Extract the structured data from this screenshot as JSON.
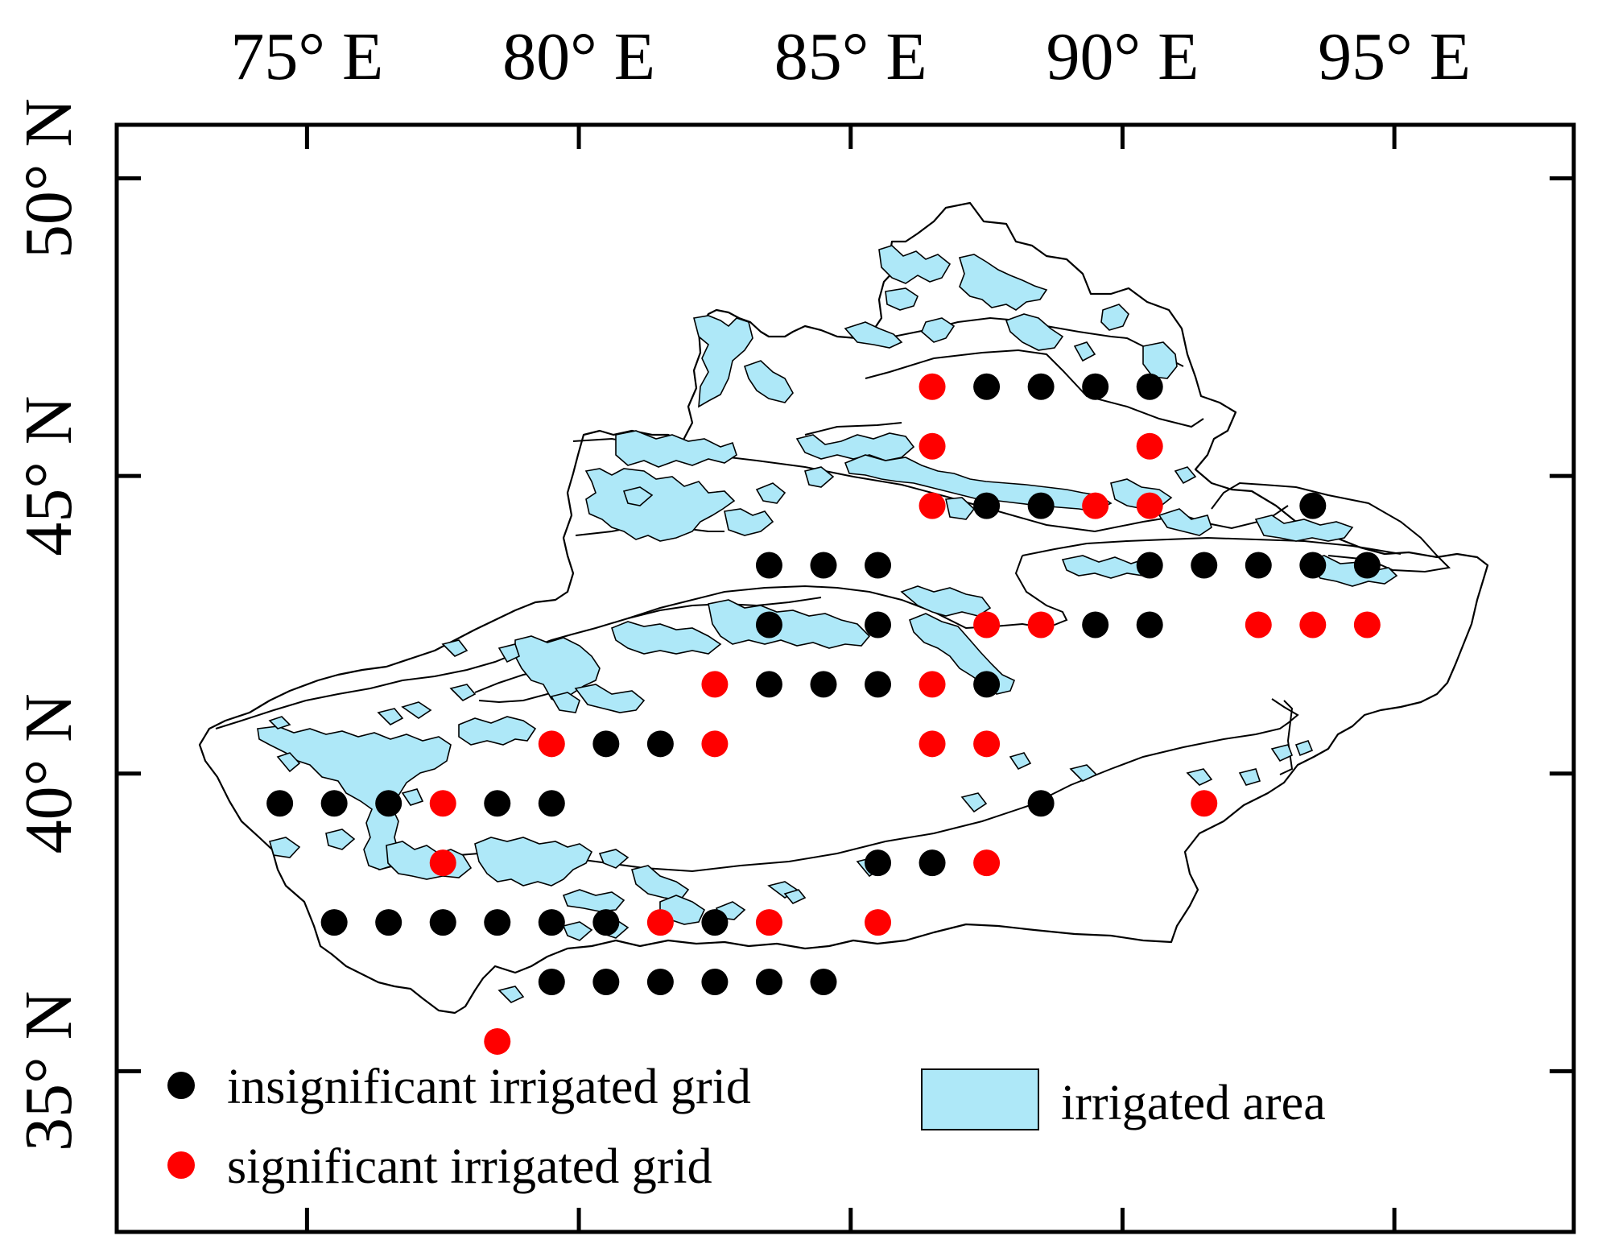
{
  "map": {
    "x_ticks": [
      {
        "lon": 75,
        "label": "75° E"
      },
      {
        "lon": 80,
        "label": "80° E"
      },
      {
        "lon": 85,
        "label": "85° E"
      },
      {
        "lon": 90,
        "label": "90° E"
      },
      {
        "lon": 95,
        "label": "95° E"
      }
    ],
    "y_ticks": [
      {
        "lat": 35,
        "label": "35° N"
      },
      {
        "lat": 40,
        "label": "40° N"
      },
      {
        "lat": 45,
        "label": "45° N"
      },
      {
        "lat": 50,
        "label": "50° N"
      }
    ],
    "lon_range": [
      71.5,
      98.3
    ],
    "lat_range": [
      32.3,
      50.9
    ],
    "colors": {
      "insignificant": "#000000",
      "significant": "#ff0000",
      "irrigated_fill": "#aee8f8",
      "outline": "#000000"
    },
    "legend": {
      "insignificant_label": "insignificant irrigated grid",
      "significant_label": "significant irrigated grid",
      "irrigated_label": "irrigated area"
    },
    "grid_points": [
      {
        "lon": 86.5,
        "lat": 46.5,
        "significance": "significant"
      },
      {
        "lon": 87.5,
        "lat": 46.5,
        "significance": "insignificant"
      },
      {
        "lon": 88.5,
        "lat": 46.5,
        "significance": "insignificant"
      },
      {
        "lon": 89.5,
        "lat": 46.5,
        "significance": "insignificant"
      },
      {
        "lon": 90.5,
        "lat": 46.5,
        "significance": "insignificant"
      },
      {
        "lon": 86.5,
        "lat": 45.5,
        "significance": "significant"
      },
      {
        "lon": 90.5,
        "lat": 45.5,
        "significance": "significant"
      },
      {
        "lon": 86.5,
        "lat": 44.5,
        "significance": "significant"
      },
      {
        "lon": 87.5,
        "lat": 44.5,
        "significance": "insignificant"
      },
      {
        "lon": 88.5,
        "lat": 44.5,
        "significance": "insignificant"
      },
      {
        "lon": 89.5,
        "lat": 44.5,
        "significance": "significant"
      },
      {
        "lon": 90.5,
        "lat": 44.5,
        "significance": "significant"
      },
      {
        "lon": 93.5,
        "lat": 44.5,
        "significance": "insignificant"
      },
      {
        "lon": 83.5,
        "lat": 43.5,
        "significance": "insignificant"
      },
      {
        "lon": 84.5,
        "lat": 43.5,
        "significance": "insignificant"
      },
      {
        "lon": 85.5,
        "lat": 43.5,
        "significance": "insignificant"
      },
      {
        "lon": 90.5,
        "lat": 43.5,
        "significance": "insignificant"
      },
      {
        "lon": 91.5,
        "lat": 43.5,
        "significance": "insignificant"
      },
      {
        "lon": 92.5,
        "lat": 43.5,
        "significance": "insignificant"
      },
      {
        "lon": 93.5,
        "lat": 43.5,
        "significance": "insignificant"
      },
      {
        "lon": 94.5,
        "lat": 43.5,
        "significance": "insignificant"
      },
      {
        "lon": 83.5,
        "lat": 42.5,
        "significance": "insignificant"
      },
      {
        "lon": 85.5,
        "lat": 42.5,
        "significance": "insignificant"
      },
      {
        "lon": 87.5,
        "lat": 42.5,
        "significance": "significant"
      },
      {
        "lon": 88.5,
        "lat": 42.5,
        "significance": "significant"
      },
      {
        "lon": 89.5,
        "lat": 42.5,
        "significance": "insignificant"
      },
      {
        "lon": 90.5,
        "lat": 42.5,
        "significance": "insignificant"
      },
      {
        "lon": 92.5,
        "lat": 42.5,
        "significance": "significant"
      },
      {
        "lon": 93.5,
        "lat": 42.5,
        "significance": "significant"
      },
      {
        "lon": 94.5,
        "lat": 42.5,
        "significance": "significant"
      },
      {
        "lon": 82.5,
        "lat": 41.5,
        "significance": "significant"
      },
      {
        "lon": 83.5,
        "lat": 41.5,
        "significance": "insignificant"
      },
      {
        "lon": 84.5,
        "lat": 41.5,
        "significance": "insignificant"
      },
      {
        "lon": 85.5,
        "lat": 41.5,
        "significance": "insignificant"
      },
      {
        "lon": 86.5,
        "lat": 41.5,
        "significance": "significant"
      },
      {
        "lon": 87.5,
        "lat": 41.5,
        "significance": "insignificant"
      },
      {
        "lon": 79.5,
        "lat": 40.5,
        "significance": "significant"
      },
      {
        "lon": 80.5,
        "lat": 40.5,
        "significance": "insignificant"
      },
      {
        "lon": 81.5,
        "lat": 40.5,
        "significance": "insignificant"
      },
      {
        "lon": 82.5,
        "lat": 40.5,
        "significance": "significant"
      },
      {
        "lon": 86.5,
        "lat": 40.5,
        "significance": "significant"
      },
      {
        "lon": 87.5,
        "lat": 40.5,
        "significance": "significant"
      },
      {
        "lon": 74.5,
        "lat": 39.5,
        "significance": "insignificant"
      },
      {
        "lon": 75.5,
        "lat": 39.5,
        "significance": "insignificant"
      },
      {
        "lon": 76.5,
        "lat": 39.5,
        "significance": "insignificant"
      },
      {
        "lon": 77.5,
        "lat": 39.5,
        "significance": "significant"
      },
      {
        "lon": 78.5,
        "lat": 39.5,
        "significance": "insignificant"
      },
      {
        "lon": 79.5,
        "lat": 39.5,
        "significance": "insignificant"
      },
      {
        "lon": 88.5,
        "lat": 39.5,
        "significance": "insignificant"
      },
      {
        "lon": 91.5,
        "lat": 39.5,
        "significance": "significant"
      },
      {
        "lon": 77.5,
        "lat": 38.5,
        "significance": "significant"
      },
      {
        "lon": 85.5,
        "lat": 38.5,
        "significance": "insignificant"
      },
      {
        "lon": 86.5,
        "lat": 38.5,
        "significance": "insignificant"
      },
      {
        "lon": 87.5,
        "lat": 38.5,
        "significance": "significant"
      },
      {
        "lon": 75.5,
        "lat": 37.5,
        "significance": "insignificant"
      },
      {
        "lon": 76.5,
        "lat": 37.5,
        "significance": "insignificant"
      },
      {
        "lon": 77.5,
        "lat": 37.5,
        "significance": "insignificant"
      },
      {
        "lon": 78.5,
        "lat": 37.5,
        "significance": "insignificant"
      },
      {
        "lon": 79.5,
        "lat": 37.5,
        "significance": "insignificant"
      },
      {
        "lon": 80.5,
        "lat": 37.5,
        "significance": "insignificant"
      },
      {
        "lon": 81.5,
        "lat": 37.5,
        "significance": "significant"
      },
      {
        "lon": 82.5,
        "lat": 37.5,
        "significance": "insignificant"
      },
      {
        "lon": 83.5,
        "lat": 37.5,
        "significance": "significant"
      },
      {
        "lon": 85.5,
        "lat": 37.5,
        "significance": "significant"
      },
      {
        "lon": 79.5,
        "lat": 36.5,
        "significance": "insignificant"
      },
      {
        "lon": 80.5,
        "lat": 36.5,
        "significance": "insignificant"
      },
      {
        "lon": 81.5,
        "lat": 36.5,
        "significance": "insignificant"
      },
      {
        "lon": 82.5,
        "lat": 36.5,
        "significance": "insignificant"
      },
      {
        "lon": 83.5,
        "lat": 36.5,
        "significance": "insignificant"
      },
      {
        "lon": 84.5,
        "lat": 36.5,
        "significance": "insignificant"
      },
      {
        "lon": 78.5,
        "lat": 35.5,
        "significance": "significant"
      }
    ]
  }
}
